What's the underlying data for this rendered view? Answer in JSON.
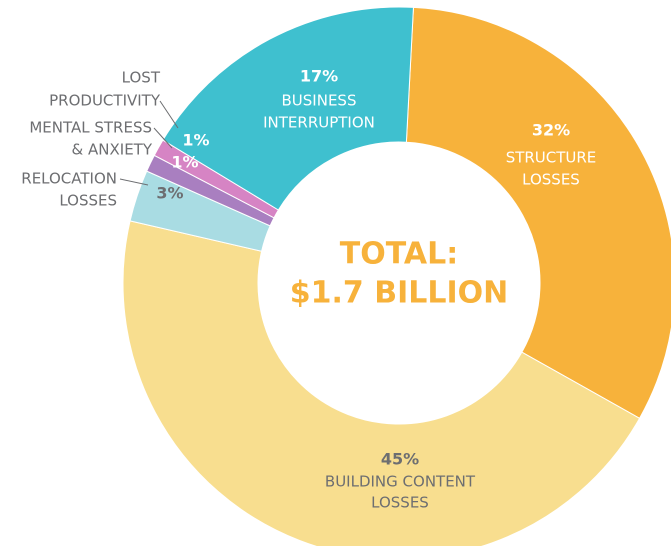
{
  "chart_data": {
    "type": "pie",
    "categories": [
      [
        "STRUCTURE",
        "LOSSES"
      ],
      [
        "BUILDING CONTENT",
        "LOSSES"
      ],
      [
        "RELOCATION",
        "LOSSES"
      ],
      [
        "MENTAL STRESS",
        "& ANXIETY"
      ],
      [
        "LOST",
        "PRODUCTIVITY"
      ],
      [
        "BUSINESS",
        "INTERRUPTION"
      ]
    ],
    "values": [
      32,
      45,
      3,
      1,
      1,
      17
    ],
    "value_labels": [
      "32%",
      "45%",
      "3%",
      "1%",
      "1%",
      "17%"
    ],
    "colors": [
      "#f7b23b",
      "#f8de8f",
      "#a9dce3",
      "#a97fc0",
      "#d684c4",
      "#3fc0cf"
    ],
    "center_text": [
      "TOTAL:",
      "$1.7 BILLION"
    ]
  }
}
